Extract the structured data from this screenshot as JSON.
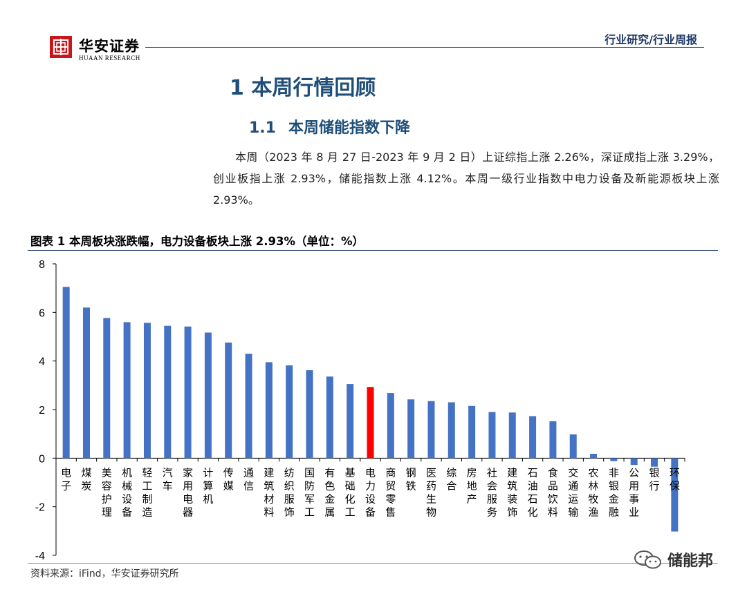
{
  "header": {
    "logo_cn": "华安证券",
    "logo_en": "HUAAN RESEARCH",
    "report_type": "行业研究/行业周报"
  },
  "section": {
    "h1": "1 本周行情回顾",
    "h2_num": "1.1",
    "h2_text": "本周储能指数下降",
    "paragraph": "本周（2023 年 8 月 27 日-2023 年 9 月 2 日）上证综指上涨 2.26%，深证成指上涨 3.29%，创业板指上涨 2.93%，储能指数上涨 4.12%。本周一级行业指数中电力设备及新能源板块上涨 2.93%。"
  },
  "figure": {
    "title": "图表 1 本周板块涨跌幅，电力设备板块上涨 2.93%（单位：%）",
    "source": "资料来源：iFind，华安证券研究所"
  },
  "watermark": {
    "text": "储能邦"
  },
  "colors": {
    "bar": "#4472c4",
    "highlight": "#ff0000",
    "accent": "#1f3864",
    "brand": "#c8161d"
  },
  "chart_data": {
    "type": "bar",
    "title": "本周板块涨跌幅，电力设备板块上涨 2.93%（单位：%）",
    "categories": [
      "电子",
      "煤炭",
      "美容护理",
      "机械设备",
      "轻工制造",
      "汽车",
      "家用电器",
      "计算机",
      "传媒",
      "通信",
      "建筑材料",
      "纺织服饰",
      "国防军工",
      "有色金属",
      "基础化工",
      "电力设备",
      "商贸零售",
      "钢铁",
      "医药生物",
      "综合",
      "房地产",
      "社会服务",
      "建筑装饰",
      "石油石化",
      "食品饮料",
      "交通运输",
      "农林牧渔",
      "非银金融",
      "公用事业",
      "银行",
      "环保"
    ],
    "values": [
      7.05,
      6.2,
      5.77,
      5.6,
      5.57,
      5.45,
      5.42,
      5.17,
      4.76,
      4.3,
      3.95,
      3.82,
      3.62,
      3.36,
      3.05,
      2.93,
      2.68,
      2.42,
      2.35,
      2.3,
      2.15,
      1.9,
      1.88,
      1.73,
      1.52,
      0.98,
      0.18,
      -0.12,
      -0.28,
      -0.35,
      -3.02
    ],
    "highlight_category": "电力设备",
    "ylim": [
      -4,
      8
    ],
    "yticks": [
      -4,
      -2,
      0,
      2,
      4,
      6,
      8
    ],
    "xlabel": "",
    "ylabel": ""
  }
}
